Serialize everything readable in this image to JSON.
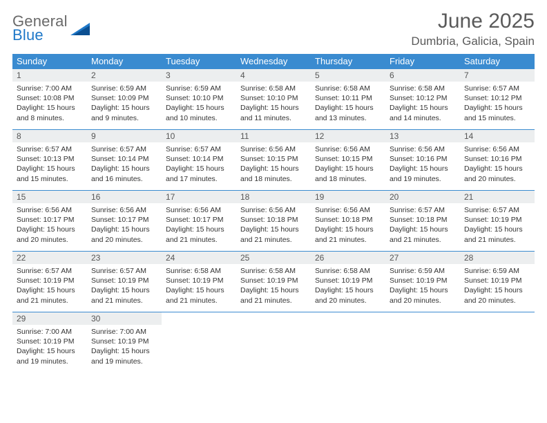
{
  "logo": {
    "line1": "General",
    "line2": "Blue",
    "color_gray": "#6a6a6a",
    "color_blue": "#1f78c8"
  },
  "title": {
    "month": "June 2025",
    "location": "Dumbria, Galicia, Spain"
  },
  "palette": {
    "header_bg": "#3a8bd0",
    "header_fg": "#ffffff",
    "daynum_bg": "#eceeef",
    "border": "#3a8bd0",
    "text": "#333333"
  },
  "daynames": [
    "Sunday",
    "Monday",
    "Tuesday",
    "Wednesday",
    "Thursday",
    "Friday",
    "Saturday"
  ],
  "weeks": [
    [
      {
        "n": "1",
        "sr": "7:00 AM",
        "ss": "10:08 PM",
        "dl": "15 hours and 8 minutes."
      },
      {
        "n": "2",
        "sr": "6:59 AM",
        "ss": "10:09 PM",
        "dl": "15 hours and 9 minutes."
      },
      {
        "n": "3",
        "sr": "6:59 AM",
        "ss": "10:10 PM",
        "dl": "15 hours and 10 minutes."
      },
      {
        "n": "4",
        "sr": "6:58 AM",
        "ss": "10:10 PM",
        "dl": "15 hours and 11 minutes."
      },
      {
        "n": "5",
        "sr": "6:58 AM",
        "ss": "10:11 PM",
        "dl": "15 hours and 13 minutes."
      },
      {
        "n": "6",
        "sr": "6:58 AM",
        "ss": "10:12 PM",
        "dl": "15 hours and 14 minutes."
      },
      {
        "n": "7",
        "sr": "6:57 AM",
        "ss": "10:12 PM",
        "dl": "15 hours and 15 minutes."
      }
    ],
    [
      {
        "n": "8",
        "sr": "6:57 AM",
        "ss": "10:13 PM",
        "dl": "15 hours and 15 minutes."
      },
      {
        "n": "9",
        "sr": "6:57 AM",
        "ss": "10:14 PM",
        "dl": "15 hours and 16 minutes."
      },
      {
        "n": "10",
        "sr": "6:57 AM",
        "ss": "10:14 PM",
        "dl": "15 hours and 17 minutes."
      },
      {
        "n": "11",
        "sr": "6:56 AM",
        "ss": "10:15 PM",
        "dl": "15 hours and 18 minutes."
      },
      {
        "n": "12",
        "sr": "6:56 AM",
        "ss": "10:15 PM",
        "dl": "15 hours and 18 minutes."
      },
      {
        "n": "13",
        "sr": "6:56 AM",
        "ss": "10:16 PM",
        "dl": "15 hours and 19 minutes."
      },
      {
        "n": "14",
        "sr": "6:56 AM",
        "ss": "10:16 PM",
        "dl": "15 hours and 20 minutes."
      }
    ],
    [
      {
        "n": "15",
        "sr": "6:56 AM",
        "ss": "10:17 PM",
        "dl": "15 hours and 20 minutes."
      },
      {
        "n": "16",
        "sr": "6:56 AM",
        "ss": "10:17 PM",
        "dl": "15 hours and 20 minutes."
      },
      {
        "n": "17",
        "sr": "6:56 AM",
        "ss": "10:17 PM",
        "dl": "15 hours and 21 minutes."
      },
      {
        "n": "18",
        "sr": "6:56 AM",
        "ss": "10:18 PM",
        "dl": "15 hours and 21 minutes."
      },
      {
        "n": "19",
        "sr": "6:56 AM",
        "ss": "10:18 PM",
        "dl": "15 hours and 21 minutes."
      },
      {
        "n": "20",
        "sr": "6:57 AM",
        "ss": "10:18 PM",
        "dl": "15 hours and 21 minutes."
      },
      {
        "n": "21",
        "sr": "6:57 AM",
        "ss": "10:19 PM",
        "dl": "15 hours and 21 minutes."
      }
    ],
    [
      {
        "n": "22",
        "sr": "6:57 AM",
        "ss": "10:19 PM",
        "dl": "15 hours and 21 minutes."
      },
      {
        "n": "23",
        "sr": "6:57 AM",
        "ss": "10:19 PM",
        "dl": "15 hours and 21 minutes."
      },
      {
        "n": "24",
        "sr": "6:58 AM",
        "ss": "10:19 PM",
        "dl": "15 hours and 21 minutes."
      },
      {
        "n": "25",
        "sr": "6:58 AM",
        "ss": "10:19 PM",
        "dl": "15 hours and 21 minutes."
      },
      {
        "n": "26",
        "sr": "6:58 AM",
        "ss": "10:19 PM",
        "dl": "15 hours and 20 minutes."
      },
      {
        "n": "27",
        "sr": "6:59 AM",
        "ss": "10:19 PM",
        "dl": "15 hours and 20 minutes."
      },
      {
        "n": "28",
        "sr": "6:59 AM",
        "ss": "10:19 PM",
        "dl": "15 hours and 20 minutes."
      }
    ],
    [
      {
        "n": "29",
        "sr": "7:00 AM",
        "ss": "10:19 PM",
        "dl": "15 hours and 19 minutes."
      },
      {
        "n": "30",
        "sr": "7:00 AM",
        "ss": "10:19 PM",
        "dl": "15 hours and 19 minutes."
      },
      null,
      null,
      null,
      null,
      null
    ]
  ],
  "labels": {
    "sunrise": "Sunrise: ",
    "sunset": "Sunset: ",
    "daylight": "Daylight: "
  }
}
